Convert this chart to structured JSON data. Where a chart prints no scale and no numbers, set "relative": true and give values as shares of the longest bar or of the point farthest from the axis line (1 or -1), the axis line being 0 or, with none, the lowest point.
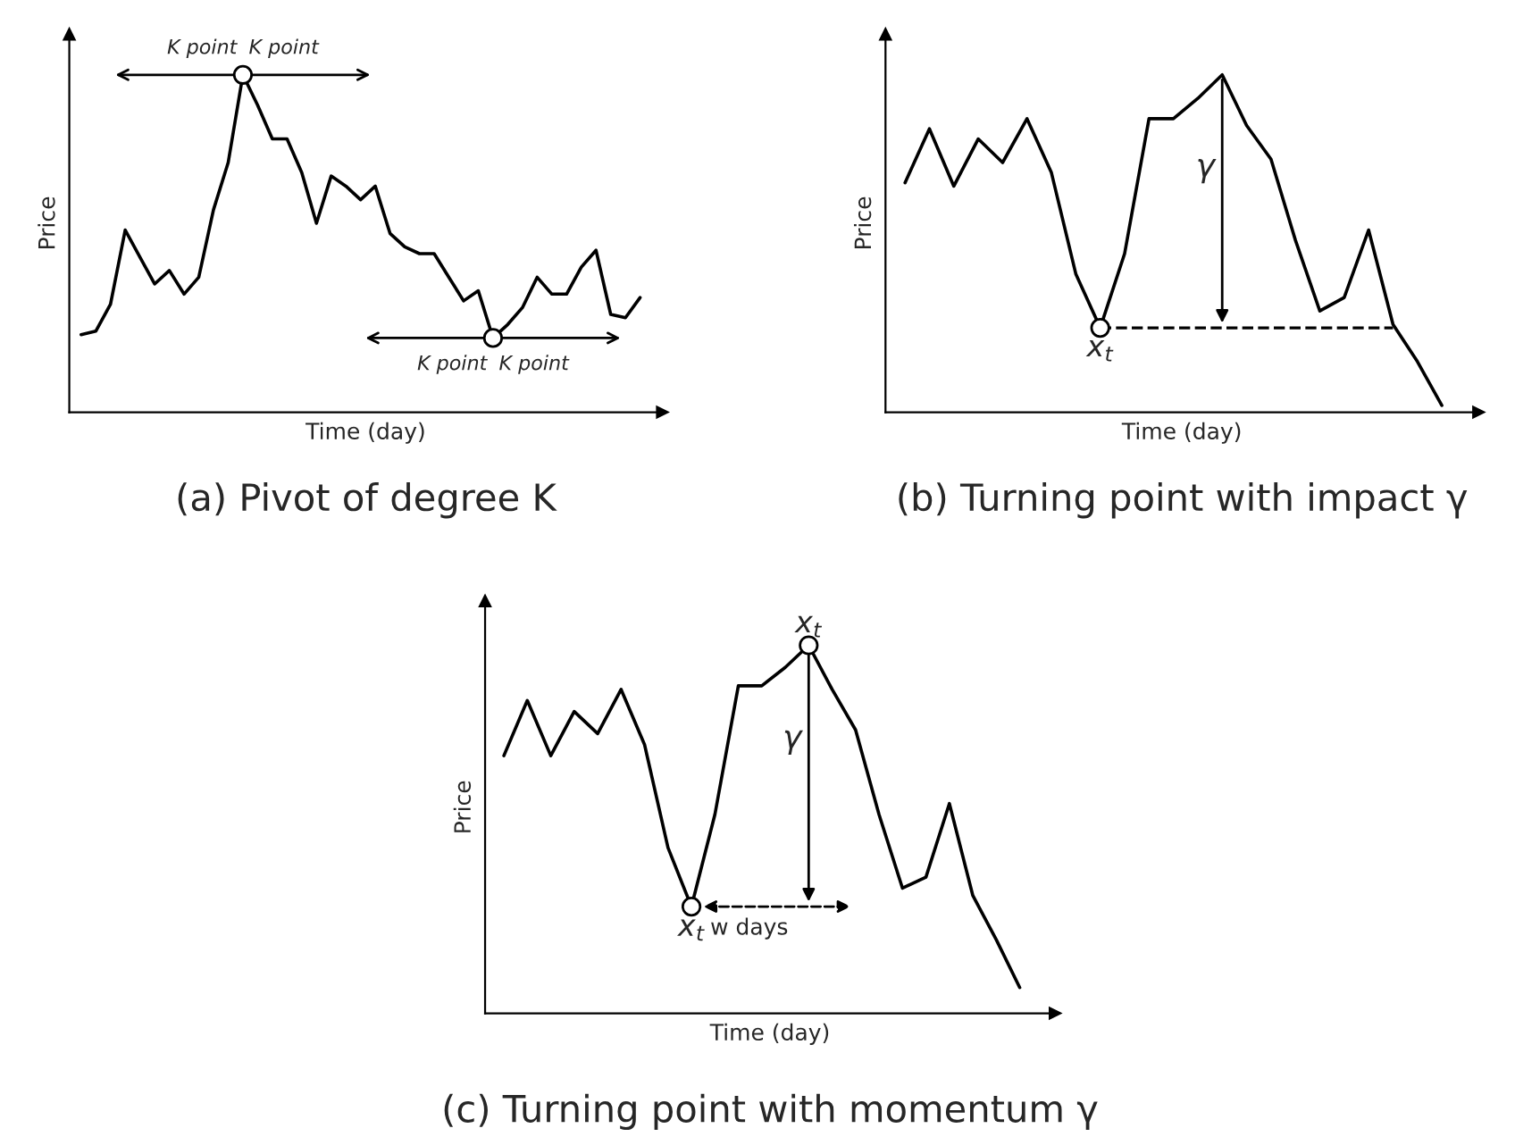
{
  "chart_data": [
    {
      "type": "line",
      "relative": true,
      "title": "(a) Pivot of degree K",
      "xlabel": "Time (day)",
      "ylabel": "Price",
      "color": "#000000",
      "tick_labels": false,
      "categories": [
        null,
        null,
        null,
        null,
        null,
        null,
        null,
        null,
        null,
        null,
        null,
        null,
        null,
        null,
        null,
        null,
        null,
        null,
        null,
        null,
        null,
        null,
        null,
        null,
        null,
        null,
        null,
        null,
        null,
        null,
        null,
        null,
        null,
        null,
        null,
        null,
        null,
        null,
        null
      ],
      "values": [
        0.23,
        0.24,
        0.32,
        0.54,
        0.46,
        0.38,
        0.42,
        0.35,
        0.4,
        0.6,
        0.74,
        1.0,
        0.91,
        0.81,
        0.81,
        0.71,
        0.56,
        0.7,
        0.67,
        0.63,
        0.67,
        0.53,
        0.49,
        0.47,
        0.47,
        0.4,
        0.33,
        0.36,
        0.22,
        0.26,
        0.31,
        0.4,
        0.35,
        0.35,
        0.43,
        0.48,
        0.29,
        0.28,
        0.34
      ],
      "annotations": [
        "K point",
        "K point",
        "K point",
        "K point"
      ]
    },
    {
      "type": "line",
      "relative": true,
      "title": "(b) Turning point with impact γ",
      "xlabel": "Time (day)",
      "ylabel": "Price",
      "color": "#000000",
      "tick_labels": false,
      "categories": [
        null,
        null,
        null,
        null,
        null,
        null,
        null,
        null,
        null,
        null,
        null,
        null,
        null,
        null,
        null,
        null,
        null,
        null,
        null,
        null,
        null,
        null,
        null
      ],
      "values": [
        0.68,
        0.84,
        0.67,
        0.81,
        0.74,
        0.87,
        0.71,
        0.41,
        0.25,
        0.47,
        0.87,
        0.87,
        0.93,
        1.0,
        0.85,
        0.75,
        0.51,
        0.3,
        0.34,
        0.54,
        0.26,
        0.15,
        0.02
      ],
      "annotations": [
        {
          "text": "x$_{t}$",
          "y": 0.25
        },
        "γ"
      ]
    },
    {
      "type": "line",
      "relative": true,
      "title": "(c) Turning point with momentum γ",
      "xlabel": "Time (day)",
      "ylabel": "Price",
      "color": "#000000",
      "tick_labels": false,
      "categories": [
        null,
        null,
        null,
        null,
        null,
        null,
        null,
        null,
        null,
        null,
        null,
        null,
        null,
        null,
        null,
        null,
        null,
        null,
        null,
        null,
        null,
        null,
        null
      ],
      "values": [
        0.7,
        0.85,
        0.7,
        0.82,
        0.76,
        0.88,
        0.73,
        0.45,
        0.29,
        0.54,
        0.89,
        0.89,
        0.94,
        1.0,
        0.88,
        0.77,
        0.54,
        0.34,
        0.37,
        0.57,
        0.32,
        0.2,
        0.07
      ],
      "annotations": [
        {
          "text": "x$_{t}$",
          "y": 0.29
        },
        {
          "text": "x$_{t}$",
          "y": 1.0
        },
        "γ",
        "w days"
      ]
    }
  ]
}
